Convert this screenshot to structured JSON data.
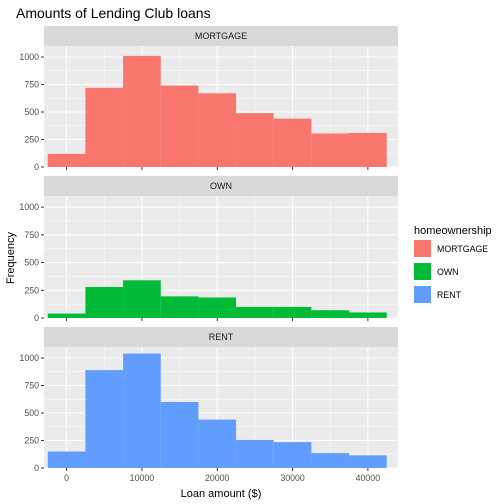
{
  "chart_data": {
    "type": "histogram",
    "title": "Amounts of Lending Club loans",
    "xlabel": "Loan amount ($)",
    "ylabel": "Frequency",
    "x_ticks": [
      0,
      10000,
      20000,
      30000,
      40000
    ],
    "x_tick_labels": [
      "0",
      "10000",
      "20000",
      "30000",
      "40000"
    ],
    "y_ticks": [
      0,
      250,
      500,
      750,
      1000
    ],
    "xlim": [
      -3000,
      44000
    ],
    "ylim": [
      0,
      1100
    ],
    "bin_edges": [
      -2500,
      2500,
      7500,
      12500,
      17500,
      22500,
      27500,
      32500,
      37500,
      42500
    ],
    "grid": true,
    "legend_title": "homeownership",
    "legend_position": "right",
    "series": [
      {
        "name": "MORTGAGE",
        "color": "#F8766D",
        "values": [
          120,
          720,
          1010,
          740,
          670,
          490,
          440,
          305,
          310
        ]
      },
      {
        "name": "OWN",
        "color": "#00BA38",
        "values": [
          40,
          280,
          340,
          195,
          185,
          100,
          100,
          70,
          50
        ]
      },
      {
        "name": "RENT",
        "color": "#619CFF",
        "values": [
          150,
          890,
          1040,
          600,
          440,
          255,
          235,
          135,
          115
        ]
      }
    ]
  }
}
